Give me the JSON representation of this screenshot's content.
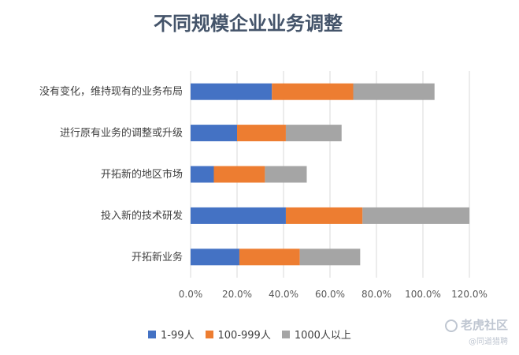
{
  "chart_data": {
    "type": "bar",
    "orientation": "horizontal",
    "stacked": true,
    "title": "不同规模企业业务调整",
    "categories": [
      "没有变化，维持现有的业务布局",
      "进行原有业务的调整或升级",
      "开拓新的地区市场",
      "投入新的技术研发",
      "开拓新业务"
    ],
    "series": [
      {
        "name": "1-99人",
        "color": "#4472c4",
        "values": [
          35,
          20,
          10,
          41,
          21
        ]
      },
      {
        "name": "100-999人",
        "color": "#ed7d31",
        "values": [
          35,
          21,
          22,
          33,
          26
        ]
      },
      {
        "name": "1000人以上",
        "color": "#a5a5a5",
        "values": [
          35,
          24,
          18,
          46,
          26
        ]
      }
    ],
    "xlim": [
      0,
      120
    ],
    "xticks": [
      "0.0%",
      "20.0%",
      "40.0%",
      "60.0%",
      "80.0%",
      "100.0%",
      "120.0%"
    ],
    "grid": true,
    "legend": "bottom"
  },
  "watermark": {
    "main": "老虎社区",
    "sub": "@同道猎聘"
  }
}
